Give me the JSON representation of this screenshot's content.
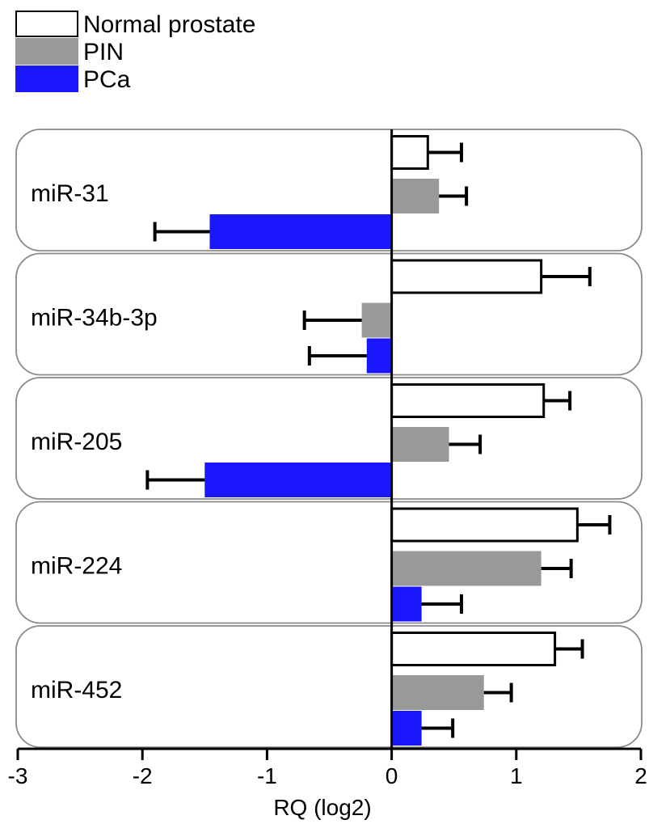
{
  "chart_data": {
    "type": "bar",
    "orientation": "horizontal",
    "xlabel": "RQ (log2)",
    "xlim": [
      -3,
      2
    ],
    "xticks": [
      -3,
      -2,
      -1,
      0,
      1,
      2
    ],
    "xtick_labels": [
      "-3",
      "-2",
      "-1",
      "0",
      "1",
      "2"
    ],
    "legend_position": "top-left",
    "categories": [
      "miR-31",
      "miR-34b-3p",
      "miR-205",
      "miR-224",
      "miR-452"
    ],
    "series": [
      {
        "name": "Normal prostate",
        "fill": "#ffffff",
        "stroke": "#000000",
        "values": [
          0.29,
          1.2,
          1.22,
          1.49,
          1.31
        ],
        "errors": [
          0.27,
          0.39,
          0.21,
          0.26,
          0.22
        ]
      },
      {
        "name": "PIN",
        "fill": "#999999",
        "stroke": "#999999",
        "values": [
          0.38,
          -0.24,
          0.46,
          1.2,
          0.74
        ],
        "errors": [
          0.22,
          0.46,
          0.25,
          0.24,
          0.22
        ]
      },
      {
        "name": "PCa",
        "fill": "#1a17ff",
        "stroke": "#1a17ff",
        "values": [
          -1.46,
          -0.2,
          -1.5,
          0.24,
          0.24
        ],
        "errors": [
          0.44,
          0.46,
          0.46,
          0.32,
          0.25
        ]
      }
    ]
  }
}
